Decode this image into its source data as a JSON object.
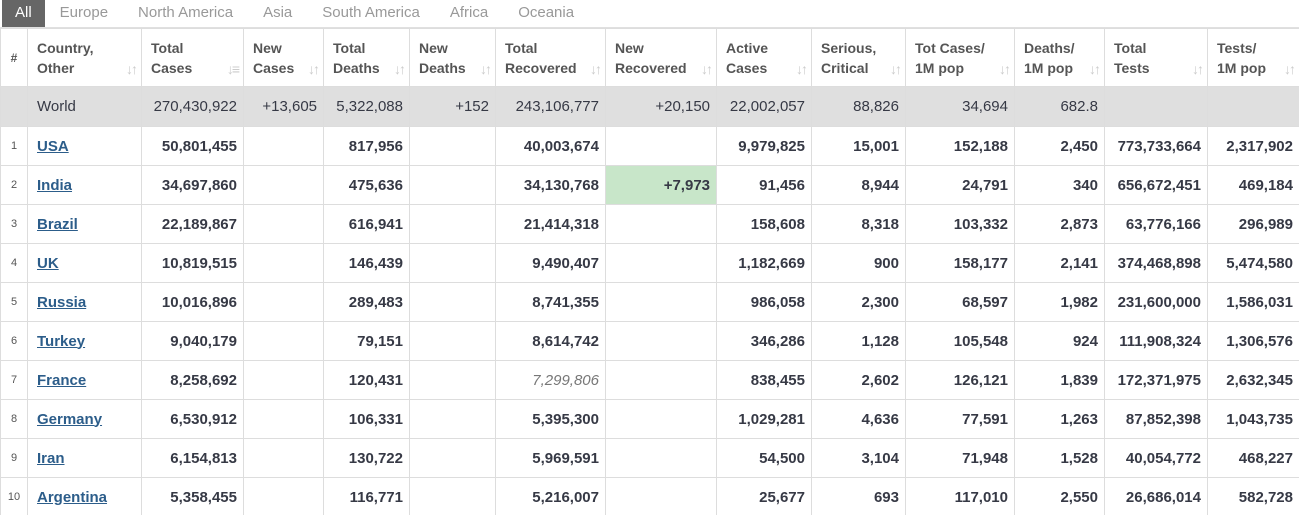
{
  "tabs": [
    "All",
    "Europe",
    "North America",
    "Asia",
    "South America",
    "Africa",
    "Oceania"
  ],
  "headers": [
    "#",
    "Country,\nOther",
    "Total\nCases",
    "New\nCases",
    "Total\nDeaths",
    "New\nDeaths",
    "Total\nRecovered",
    "New\nRecovered",
    "Active\nCases",
    "Serious,\nCritical",
    "Tot Cases/\n1M pop",
    "Deaths/\n1M pop",
    "Total\nTests",
    "Tests/\n1M pop"
  ],
  "world": [
    "",
    "World",
    "270,430,922",
    "+13,605",
    "5,322,088",
    "+152",
    "243,106,777",
    "+20,150",
    "22,002,057",
    "88,826",
    "34,694",
    "682.8",
    "",
    ""
  ],
  "rows": [
    [
      "1",
      "USA",
      "50,801,455",
      "",
      "817,956",
      "",
      "40,003,674",
      "",
      "9,979,825",
      "15,001",
      "152,188",
      "2,450",
      "773,733,664",
      "2,317,902"
    ],
    [
      "2",
      "India",
      "34,697,860",
      "",
      "475,636",
      "",
      "34,130,768",
      "+7,973",
      "91,456",
      "8,944",
      "24,791",
      "340",
      "656,672,451",
      "469,184"
    ],
    [
      "3",
      "Brazil",
      "22,189,867",
      "",
      "616,941",
      "",
      "21,414,318",
      "",
      "158,608",
      "8,318",
      "103,332",
      "2,873",
      "63,776,166",
      "296,989"
    ],
    [
      "4",
      "UK",
      "10,819,515",
      "",
      "146,439",
      "",
      "9,490,407",
      "",
      "1,182,669",
      "900",
      "158,177",
      "2,141",
      "374,468,898",
      "5,474,580"
    ],
    [
      "5",
      "Russia",
      "10,016,896",
      "",
      "289,483",
      "",
      "8,741,355",
      "",
      "986,058",
      "2,300",
      "68,597",
      "1,982",
      "231,600,000",
      "1,586,031"
    ],
    [
      "6",
      "Turkey",
      "9,040,179",
      "",
      "79,151",
      "",
      "8,614,742",
      "",
      "346,286",
      "1,128",
      "105,548",
      "924",
      "111,908,324",
      "1,306,576"
    ],
    [
      "7",
      "France",
      "8,258,692",
      "",
      "120,431",
      "",
      "7,299,806",
      "",
      "838,455",
      "2,602",
      "126,121",
      "1,839",
      "172,371,975",
      "2,632,345"
    ],
    [
      "8",
      "Germany",
      "6,530,912",
      "",
      "106,331",
      "",
      "5,395,300",
      "",
      "1,029,281",
      "4,636",
      "77,591",
      "1,263",
      "87,852,398",
      "1,043,735"
    ],
    [
      "9",
      "Iran",
      "6,154,813",
      "",
      "130,722",
      "",
      "5,969,591",
      "",
      "54,500",
      "3,104",
      "71,948",
      "1,528",
      "40,054,772",
      "468,227"
    ],
    [
      "10",
      "Argentina",
      "5,358,455",
      "",
      "116,771",
      "",
      "5,216,007",
      "",
      "25,677",
      "693",
      "117,010",
      "2,550",
      "26,686,014",
      "582,728"
    ]
  ],
  "colors": {
    "highlight_new_recovered": "#c8e6c9",
    "world_row": "#dfdfdf",
    "active_tab": "#666666",
    "link": "#2c5d8a"
  }
}
